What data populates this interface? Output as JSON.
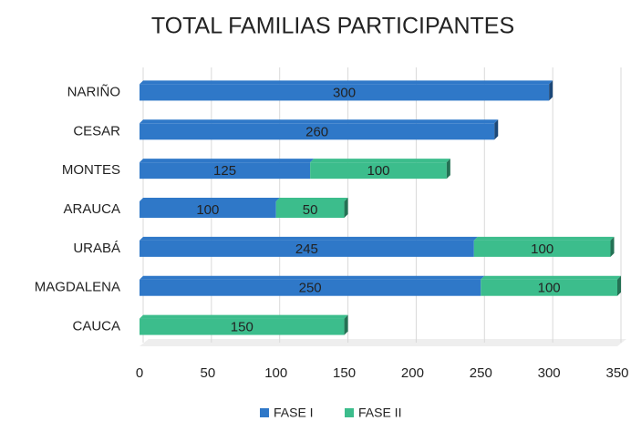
{
  "chart_data": {
    "type": "bar",
    "orientation": "horizontal",
    "stacked": true,
    "title": "TOTAL FAMILIAS PARTICIPANTES",
    "categories": [
      "NARIÑO",
      "CESAR",
      "MONTES",
      "ARAUCA",
      "URABÁ",
      "MAGDALENA",
      "CAUCA"
    ],
    "series": [
      {
        "name": "FASE I",
        "color": "#2f78c8",
        "values": [
          300,
          260,
          125,
          100,
          245,
          250,
          null
        ]
      },
      {
        "name": "FASE II",
        "color": "#3cbd8c",
        "values": [
          null,
          null,
          100,
          50,
          100,
          100,
          150
        ]
      }
    ],
    "xlim": [
      0,
      350
    ],
    "xticks": [
      0,
      50,
      100,
      150,
      200,
      250,
      300,
      350
    ],
    "grid": true,
    "legend": "bottom"
  }
}
